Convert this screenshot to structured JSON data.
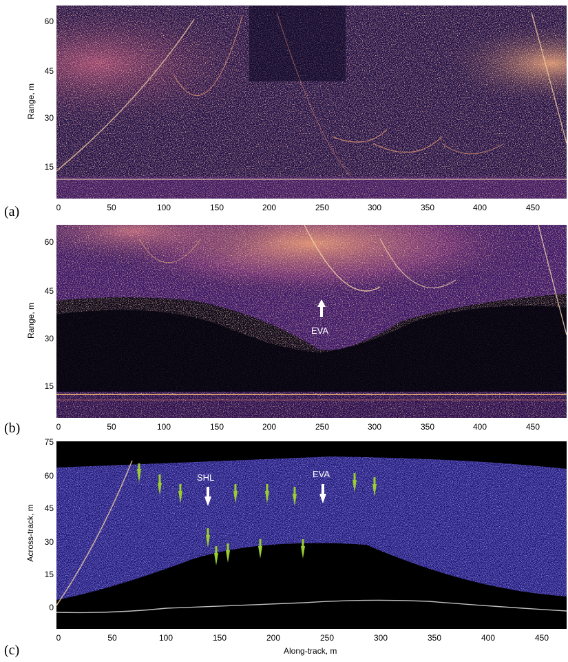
{
  "panels": [
    {
      "label": "(a)",
      "ylabel": "Range, m",
      "yticks": [
        "60",
        "45",
        "30",
        "15"
      ],
      "xticks": [
        "0",
        "50",
        "100",
        "150",
        "200",
        "250",
        "300",
        "350",
        "400",
        "450"
      ],
      "xlabel": ""
    },
    {
      "label": "(b)",
      "ylabel": "Range, m",
      "yticks": [
        "60",
        "45",
        "30",
        "15"
      ],
      "xticks": [
        "0",
        "50",
        "100",
        "150",
        "200",
        "250",
        "300",
        "350",
        "400",
        "450"
      ],
      "xlabel": "",
      "annotations": [
        "EVA"
      ]
    },
    {
      "label": "(c)",
      "ylabel": "Across-track, m",
      "yticks": [
        "75",
        "60",
        "45",
        "30",
        "15",
        "0"
      ],
      "xticks": [
        "0",
        "50",
        "100",
        "150",
        "200",
        "250",
        "300",
        "350",
        "400",
        "450"
      ],
      "xlabel": "Along-track, m",
      "annotations": [
        "SHL",
        "EVA"
      ]
    }
  ],
  "colors": {
    "background": "#ffffff",
    "image_dark": "#06040f",
    "image_mid": "#3a1a6e",
    "image_bright": "#f0a050",
    "arrow_green": "#9acd32",
    "arrow_white": "#ffffff"
  }
}
